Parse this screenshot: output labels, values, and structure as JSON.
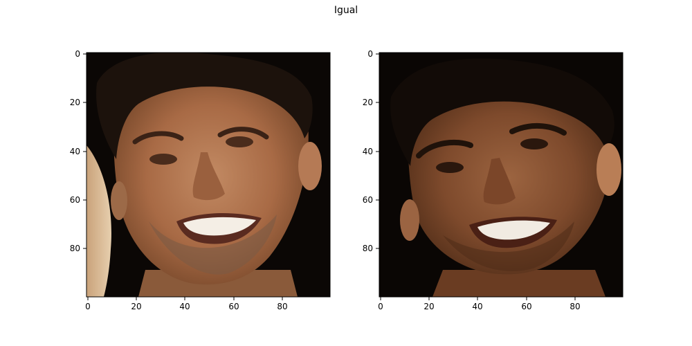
{
  "figure": {
    "title": "Igual"
  },
  "panels": [
    {
      "name": "left-face-image",
      "xticks": [
        "0",
        "20",
        "40",
        "60",
        "80"
      ],
      "yticks": [
        "0",
        "20",
        "40",
        "60",
        "80"
      ]
    },
    {
      "name": "right-face-image",
      "xticks": [
        "0",
        "20",
        "40",
        "60",
        "80"
      ],
      "yticks": [
        "0",
        "20",
        "40",
        "60",
        "80"
      ]
    }
  ]
}
